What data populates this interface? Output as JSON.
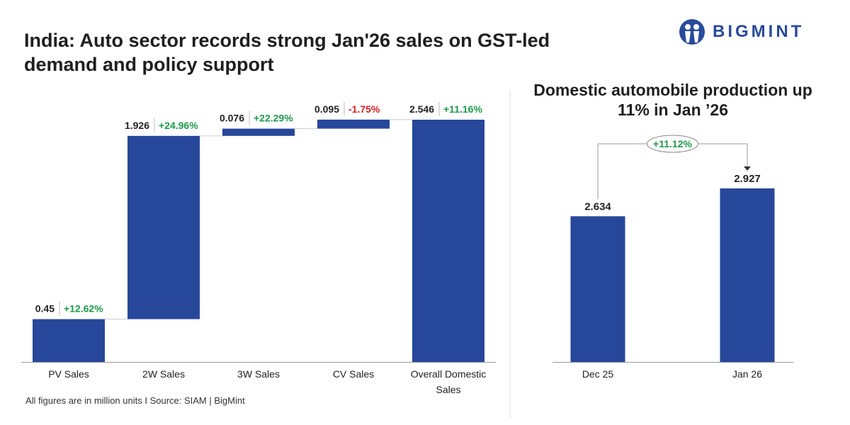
{
  "title": "India: Auto sector records strong Jan'26 sales on GST-led demand and policy support",
  "logo": {
    "text": "BIGMINT",
    "color": "#2a4a9b"
  },
  "footnote": "All figures are in million units  I  Source: SIAM | BigMint",
  "colors": {
    "bar": "#27479a",
    "positive": "#1e9a4b",
    "negative": "#d32027"
  },
  "chart_data": [
    {
      "type": "waterfall",
      "categories": [
        "PV Sales",
        "2W Sales",
        "3W Sales",
        "CV Sales",
        "Overall Domestic Sales"
      ],
      "values": [
        0.45,
        1.926,
        0.076,
        0.095,
        2.546
      ],
      "value_labels": [
        "0.45",
        "1.926",
        "0.076",
        "0.095",
        "2.546"
      ],
      "changes": [
        "+12.62%",
        "+24.96%",
        "+22.29%",
        "-1.75%",
        "+11.16%"
      ],
      "total_index": 4,
      "ylim": [
        0,
        2.546
      ]
    },
    {
      "type": "bar",
      "title": "Domestic automobile production up 11% in Jan ’26",
      "categories": [
        "Dec 25",
        "Jan 26"
      ],
      "values": [
        2.634,
        2.927
      ],
      "value_labels": [
        "2.634",
        "2.927"
      ],
      "annotation": "+11.12%"
    }
  ]
}
